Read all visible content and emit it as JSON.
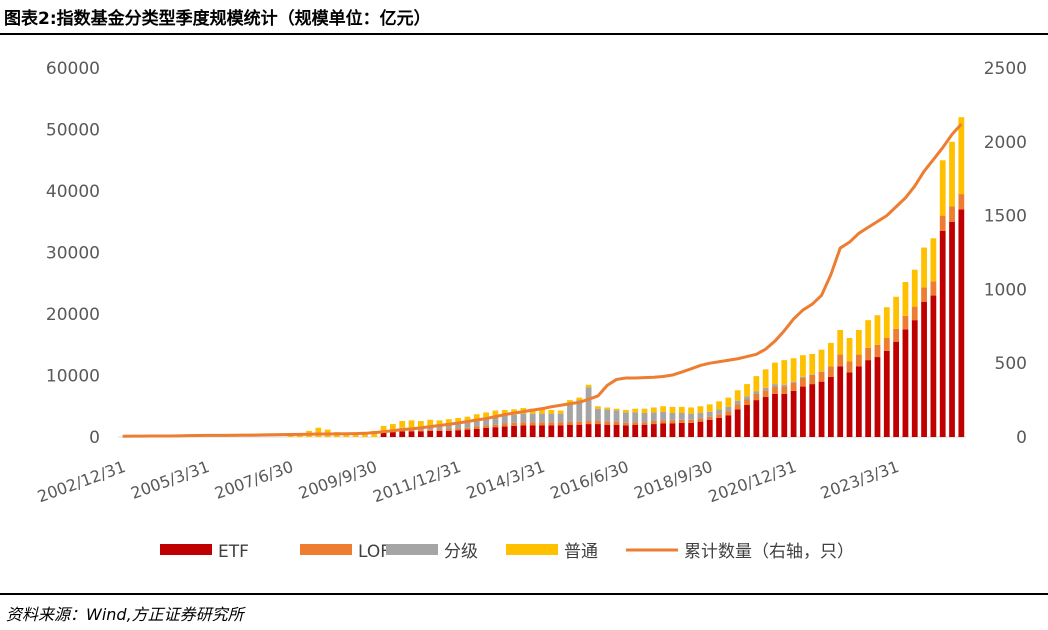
{
  "title": "图表2:指数基金分类型季度规模统计（规模单位：亿元）",
  "source": "资料来源：Wind,方正证券研究所",
  "chart_data": {
    "type": "bar",
    "stacked": true,
    "left_axis": {
      "min": 0,
      "max": 60000,
      "step": 10000,
      "ticks": [
        "0",
        "10000",
        "20000",
        "30000",
        "40000",
        "50000",
        "60000"
      ]
    },
    "right_axis": {
      "min": 0,
      "max": 2500,
      "step": 500,
      "ticks": [
        "0",
        "500",
        "1000",
        "1500",
        "2000",
        "2500"
      ]
    },
    "x_tick_labels": [
      {
        "index": 0,
        "label": "2002/12/31"
      },
      {
        "index": 9,
        "label": "2005/3/31"
      },
      {
        "index": 18,
        "label": "2007/6/30"
      },
      {
        "index": 27,
        "label": "2009/9/30"
      },
      {
        "index": 36,
        "label": "2011/12/31"
      },
      {
        "index": 45,
        "label": "2014/3/31"
      },
      {
        "index": 54,
        "label": "2016/6/30"
      },
      {
        "index": 63,
        "label": "2018/9/30"
      },
      {
        "index": 72,
        "label": "2020/12/31"
      },
      {
        "index": 83,
        "label": "2023/3/31"
      }
    ],
    "colors": {
      "ETF": "#C00000",
      "LOF": "#ED7D31",
      "分级": "#A5A5A5",
      "普通": "#FFC000",
      "line": "#ED7D31"
    },
    "series": [
      {
        "name": "ETF",
        "values": [
          0,
          0,
          0,
          0,
          0,
          0,
          0,
          0,
          0,
          0,
          0,
          0,
          0,
          0,
          0,
          0,
          0,
          0,
          0,
          0,
          0,
          0,
          0,
          0,
          0,
          0,
          0,
          0,
          700,
          800,
          900,
          900,
          900,
          1000,
          1000,
          1000,
          1100,
          1200,
          1300,
          1500,
          1600,
          1700,
          1800,
          1900,
          1900,
          1900,
          1900,
          1900,
          2000,
          2000,
          2100,
          2100,
          2000,
          2000,
          1900,
          2000,
          2000,
          2100,
          2200,
          2200,
          2300,
          2300,
          2500,
          2800,
          3100,
          3500,
          4500,
          5200,
          6000,
          6500,
          7000,
          7000,
          7500,
          8200,
          8600,
          9000,
          9800,
          11500,
          10500,
          11500,
          12500,
          13000,
          14000,
          15500,
          17500,
          19000,
          22000,
          23000,
          33500,
          35000,
          37000
        ]
      },
      {
        "name": "LOF",
        "values": [
          0,
          0,
          0,
          0,
          0,
          0,
          0,
          0,
          0,
          0,
          0,
          0,
          0,
          0,
          0,
          0,
          0,
          0,
          0,
          0,
          0,
          0,
          0,
          0,
          0,
          0,
          0,
          0,
          100,
          100,
          200,
          200,
          200,
          200,
          200,
          300,
          300,
          300,
          400,
          400,
          400,
          500,
          500,
          500,
          500,
          500,
          500,
          500,
          500,
          500,
          500,
          500,
          500,
          500,
          400,
          400,
          400,
          500,
          500,
          500,
          500,
          500,
          500,
          500,
          600,
          700,
          800,
          900,
          1000,
          1100,
          1200,
          1200,
          1300,
          1400,
          1500,
          1600,
          1700,
          1900,
          1800,
          1900,
          2000,
          2000,
          2100,
          2100,
          2200,
          2200,
          2300,
          2300,
          2500,
          2500,
          2500
        ]
      },
      {
        "name": "分级",
        "values": [
          0,
          0,
          0,
          0,
          0,
          0,
          0,
          0,
          0,
          0,
          0,
          0,
          0,
          0,
          0,
          0,
          0,
          0,
          0,
          0,
          0,
          0,
          0,
          0,
          0,
          0,
          0,
          0,
          200,
          300,
          400,
          500,
          500,
          600,
          600,
          800,
          800,
          900,
          1100,
          1200,
          1300,
          1300,
          1300,
          1400,
          1400,
          1400,
          1400,
          1400,
          3000,
          3500,
          5500,
          2000,
          2000,
          1800,
          1700,
          1600,
          1500,
          1400,
          1400,
          1200,
          1100,
          1000,
          900,
          800,
          800,
          700,
          600,
          500,
          400,
          400,
          400,
          300,
          200,
          200,
          100,
          100,
          0,
          0,
          0,
          0,
          0,
          0,
          0,
          0,
          0,
          0,
          0,
          0,
          0,
          0,
          0
        ]
      },
      {
        "name": "普通",
        "values": [
          0,
          0,
          0,
          0,
          0,
          0,
          0,
          0,
          0,
          0,
          0,
          0,
          0,
          0,
          0,
          0,
          0,
          0,
          300,
          500,
          1000,
          1500,
          1200,
          800,
          600,
          500,
          700,
          1000,
          800,
          900,
          1100,
          1100,
          1000,
          1000,
          900,
          800,
          900,
          900,
          900,
          900,
          1000,
          900,
          900,
          900,
          800,
          700,
          600,
          500,
          500,
          400,
          400,
          400,
          300,
          300,
          400,
          600,
          700,
          800,
          900,
          1000,
          1000,
          1000,
          1100,
          1200,
          1300,
          1500,
          1700,
          2000,
          2500,
          3000,
          3500,
          4000,
          3800,
          3500,
          3300,
          3500,
          3800,
          4000,
          3800,
          4000,
          4500,
          4800,
          5000,
          5200,
          5500,
          6000,
          6500,
          7000,
          9000,
          10500,
          12500
        ]
      },
      {
        "name": "累计数量（右轴，只）",
        "type": "line",
        "axis": "right",
        "values": [
          5,
          6,
          6,
          7,
          7,
          7,
          8,
          9,
          10,
          11,
          11,
          11,
          12,
          13,
          13,
          14,
          15,
          16,
          17,
          18,
          19,
          20,
          20,
          21,
          22,
          23,
          25,
          30,
          36,
          42,
          50,
          55,
          62,
          70,
          78,
          86,
          95,
          105,
          115,
          125,
          138,
          152,
          162,
          172,
          182,
          192,
          205,
          215,
          225,
          235,
          255,
          278,
          350,
          390,
          400,
          400,
          402,
          405,
          410,
          420,
          440,
          462,
          485,
          500,
          510,
          520,
          530,
          545,
          560,
          595,
          650,
          720,
          800,
          860,
          900,
          960,
          1100,
          1280,
          1320,
          1380,
          1420,
          1460,
          1500,
          1560,
          1620,
          1700,
          1800,
          1880,
          1960,
          2050,
          2120
        ]
      }
    ],
    "legend": [
      {
        "name": "ETF",
        "kind": "bar"
      },
      {
        "name": "LOF",
        "kind": "bar"
      },
      {
        "name": "分级",
        "kind": "bar"
      },
      {
        "name": "普通",
        "kind": "bar"
      },
      {
        "name": "累计数量（右轴，只）",
        "kind": "line"
      }
    ]
  }
}
